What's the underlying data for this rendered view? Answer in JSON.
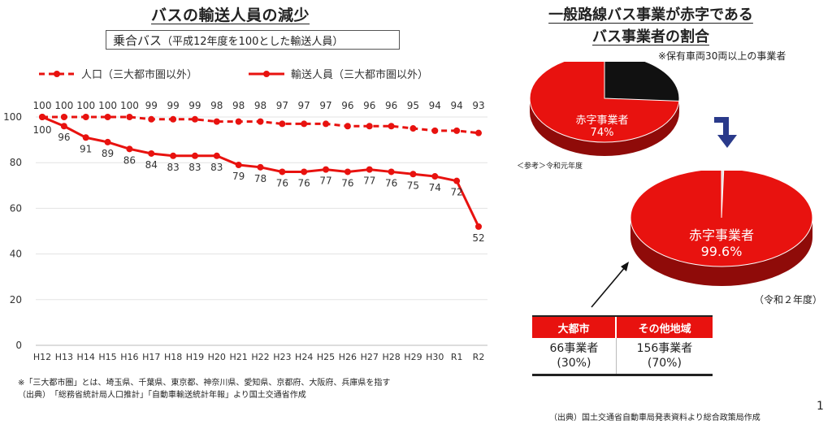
{
  "left_title": "バスの輸送人員の減少",
  "subtitle_main": "乗合バス",
  "subtitle_paren": "（平成12年度を100とした輸送人員）",
  "chart_data": {
    "type": "line",
    "categories": [
      "H12",
      "H13",
      "H14",
      "H15",
      "H16",
      "H17",
      "H18",
      "H19",
      "H20",
      "H21",
      "H22",
      "H23",
      "H24",
      "H25",
      "H26",
      "H27",
      "H28",
      "H29",
      "H30",
      "R1",
      "R2"
    ],
    "series": [
      {
        "name": "人口（三大都市圏以外）",
        "style": "dashed",
        "values": [
          100,
          100,
          100,
          100,
          100,
          99,
          99,
          99,
          98,
          98,
          98,
          97,
          97,
          97,
          96,
          96,
          96,
          95,
          94,
          94,
          93
        ]
      },
      {
        "name": "輸送人員（三大都市圏以外）",
        "style": "solid",
        "values": [
          100,
          96,
          91,
          89,
          86,
          84,
          83,
          83,
          83,
          79,
          78,
          76,
          76,
          77,
          76,
          77,
          76,
          75,
          74,
          72,
          52
        ]
      }
    ],
    "yticks": [
      0,
      20,
      40,
      60,
      80,
      100
    ],
    "ylim": [
      0,
      100
    ],
    "grid": true,
    "legend": "top",
    "color": "#e8120f"
  },
  "footnote_1": "※「三大都市圏」とは、埼玉県、千葉県、東京都、神奈川県、愛知県、京都府、大阪府、兵庫県を指す",
  "footnote_2": "（出典）　「総務省統計局人口推計」「自動車輸送統計年報」より国土交通省作成",
  "right_title_1": "一般路線バス事業が赤字である",
  "right_title_2": "バス事業者の割合",
  "right_note": "※保有車両30両以上の事業者",
  "pie_small": {
    "label": "赤字事業者",
    "value": "74%",
    "percent": 74
  },
  "ref_note": "＜参考＞令和元年度",
  "pie_large": {
    "label": "赤字事業者",
    "value": "99.6%",
    "percent": 99.6
  },
  "year_note": "（令和２年度）",
  "table": {
    "headers": [
      "大都市",
      "その他地域"
    ],
    "row1": [
      "66事業者",
      "156事業者"
    ],
    "row2": [
      "(30%)",
      "(70%)"
    ]
  },
  "source_right": "（出典）国土交通省自動車局発表資料より総合政策局作成",
  "page_number": "1",
  "colors": {
    "red": "#e8120f",
    "dark": "#111111",
    "blue": "#2a3a8a"
  }
}
